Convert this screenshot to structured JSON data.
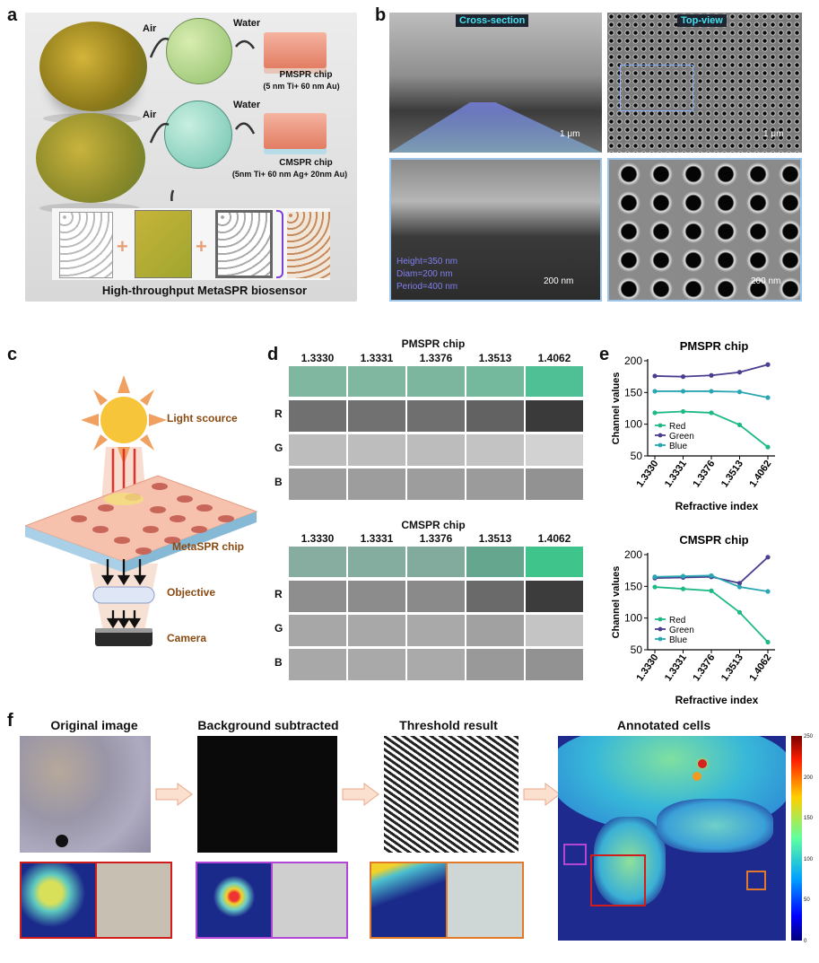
{
  "panel_a": {
    "label": "a",
    "air1": "Air",
    "water1": "Water",
    "air2": "Air",
    "water2": "Water",
    "pmspr_title": "PMSPR chip",
    "pmspr_spec": "(5 nm Ti+ 60 nm  Au)",
    "cmspr_title": "CMSPR chip",
    "cmspr_spec": "(5nm Ti+ 60 nm Ag+ 20nm Au)",
    "caption": "High-throughput MetaSPR biosensor"
  },
  "panel_b": {
    "label": "b",
    "cross_section": "Cross-section",
    "top_view": "Top-view",
    "scale_1um_a": "1 μm",
    "scale_1um_b": "1 μm",
    "scale_200_a": "200 nm",
    "scale_200_b": "200 nm",
    "height": "Height=350 nm",
    "diam": "Diam=200 nm",
    "period": "Period=400 nm"
  },
  "panel_c": {
    "label": "c",
    "light": "Light scource",
    "chip": "MetaSPR chip",
    "objective": "Objective",
    "camera": "Camera"
  },
  "panel_d": {
    "label": "d",
    "pm_title": "PMSPR chip",
    "cm_title": "CMSPR chip",
    "columns": [
      "1.3330",
      "1.3331",
      "1.3376",
      "1.3513",
      "1.4062"
    ],
    "rows": [
      "R",
      "G",
      "B"
    ]
  },
  "panel_e": {
    "label": "e",
    "pm_title": "PMSPR chip",
    "cm_title": "CMSPR chip",
    "ylabel": "Channel values",
    "xlabel": "Refractive index",
    "legend": [
      "Red",
      "Green",
      "Blue"
    ]
  },
  "panel_f": {
    "label": "f",
    "t1": "Original image",
    "t2": "Background subtracted",
    "t3": "Threshold result",
    "t4": "Annotated cells",
    "colorbar_ticks": [
      "250",
      "200",
      "150",
      "100",
      "50",
      "0"
    ]
  },
  "colors": {
    "red_series": "#1fb985",
    "green_series": "#4a3d8f",
    "blue_series": "#2aa6b3"
  },
  "chart_data": [
    {
      "type": "line",
      "title": "PMSPR chip",
      "xlabel": "Refractive index",
      "ylabel": "Channel values",
      "categories": [
        "1.3330",
        "1.3331",
        "1.3376",
        "1.3513",
        "1.4062"
      ],
      "ylim": [
        50,
        200
      ],
      "yticks": [
        50,
        100,
        150,
        200
      ],
      "series": [
        {
          "name": "Red",
          "values": [
            118,
            120,
            118,
            99,
            64
          ]
        },
        {
          "name": "Green",
          "values": [
            176,
            175,
            177,
            182,
            194
          ]
        },
        {
          "name": "Blue",
          "values": [
            152,
            152,
            152,
            151,
            142
          ]
        }
      ]
    },
    {
      "type": "line",
      "title": "CMSPR chip",
      "xlabel": "Refractive index",
      "ylabel": "Channel values",
      "categories": [
        "1.3330",
        "1.3331",
        "1.3376",
        "1.3513",
        "1.4062"
      ],
      "ylim": [
        50,
        200
      ],
      "yticks": [
        50,
        100,
        150,
        200
      ],
      "series": [
        {
          "name": "Red",
          "values": [
            149,
            146,
            143,
            109,
            62
          ]
        },
        {
          "name": "Green",
          "values": [
            163,
            164,
            165,
            155,
            196
          ]
        },
        {
          "name": "Blue",
          "values": [
            165,
            166,
            167,
            149,
            142
          ]
        }
      ]
    }
  ]
}
